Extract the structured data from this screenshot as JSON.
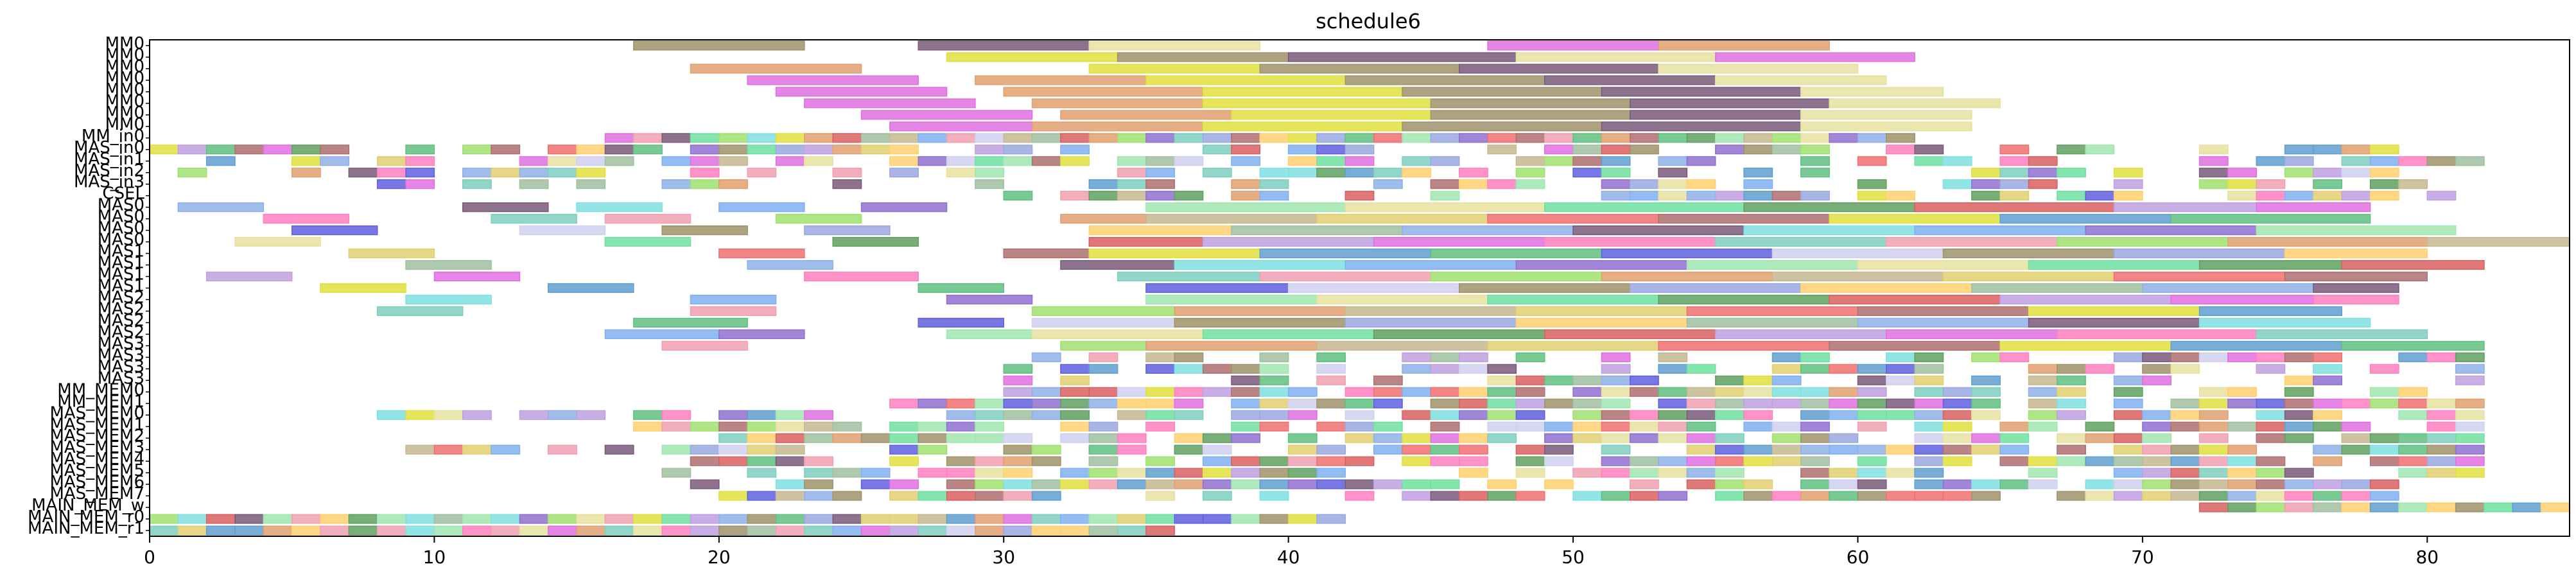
{
  "chart_data": {
    "type": "gantt",
    "title": "schedule6",
    "xlabel": "",
    "ylabel": "",
    "xlim": [
      0,
      85
    ],
    "x_ticks": [
      0,
      10,
      20,
      30,
      40,
      50,
      60,
      70,
      80
    ],
    "x_tick_labels": [
      "0",
      "10",
      "20",
      "30",
      "40",
      "50",
      "60",
      "70",
      "80"
    ],
    "grid": false,
    "legend": "none",
    "rows": [
      "MM0",
      "MM0",
      "MM0",
      "MM0",
      "MM0",
      "MM0",
      "MM0",
      "MM0",
      "MM_in0",
      "MAS_in0",
      "MAS_in1",
      "MAS_in2",
      "MAS_in3",
      "CSEL",
      "MAS0",
      "MAS0",
      "MAS0",
      "MAS0",
      "MAS1",
      "MAS1",
      "MAS1",
      "MAS1",
      "MAS2",
      "MAS2",
      "MAS2",
      "MAS2",
      "MAS3",
      "MAS3",
      "MAS3",
      "MAS3",
      "MM_MEM0",
      "MM_MEM1",
      "MAS_MEM0",
      "MAS_MEM1",
      "MAS_MEM2",
      "MAS_MEM3",
      "MAS_MEM4",
      "MAS_MEM5",
      "MAS_MEM6",
      "MAS_MEM7",
      "MAIN_MEM_w",
      "MAIN_MEM_r0",
      "MAIN_MEM_r1"
    ],
    "palette": [
      "#c6b98f",
      "#8fb0e8",
      "#7ecfbf",
      "#a0936a",
      "#d96060",
      "#5f9fd0",
      "#a0e6b0",
      "#e0d070",
      "#7a5a7a",
      "#f0a0b0",
      "#9aa8e0",
      "#c0a0e0",
      "#60c080",
      "#e8e0a0",
      "#f07070",
      "#80e0e0",
      "#a0e070",
      "#ffd070",
      "#e070e0",
      "#6060e0",
      "#70e0a0",
      "#b07070",
      "#80b0f0",
      "#e0a070",
      "#a0c0a0",
      "#ff80c0",
      "#d0d0f0",
      "#60a060",
      "#e0e040",
      "#9070d0"
    ],
    "bars": [
      [
        0,
        17,
        23
      ],
      [
        0,
        27,
        33
      ],
      [
        0,
        33,
        39
      ],
      [
        0,
        47,
        53
      ],
      [
        0,
        53,
        59
      ],
      [
        1,
        28,
        34
      ],
      [
        1,
        34,
        40
      ],
      [
        1,
        40,
        48
      ],
      [
        1,
        48,
        55
      ],
      [
        1,
        55,
        62
      ],
      [
        2,
        19,
        25
      ],
      [
        2,
        33,
        39
      ],
      [
        2,
        39,
        46
      ],
      [
        2,
        46,
        53
      ],
      [
        2,
        53,
        60
      ],
      [
        3,
        21,
        27
      ],
      [
        3,
        29,
        35
      ],
      [
        3,
        35,
        42
      ],
      [
        3,
        42,
        49
      ],
      [
        3,
        49,
        55
      ],
      [
        3,
        55,
        61
      ],
      [
        4,
        22,
        28
      ],
      [
        4,
        30,
        37
      ],
      [
        4,
        37,
        44
      ],
      [
        4,
        44,
        51
      ],
      [
        4,
        51,
        58
      ],
      [
        4,
        58,
        63
      ],
      [
        5,
        23,
        29
      ],
      [
        5,
        31,
        37
      ],
      [
        5,
        37,
        45
      ],
      [
        5,
        45,
        52
      ],
      [
        5,
        52,
        59
      ],
      [
        5,
        59,
        65
      ],
      [
        6,
        25,
        31
      ],
      [
        6,
        32,
        38
      ],
      [
        6,
        38,
        45
      ],
      [
        6,
        45,
        52
      ],
      [
        6,
        52,
        58
      ],
      [
        6,
        58,
        64
      ],
      [
        7,
        26,
        31
      ],
      [
        7,
        31,
        37
      ],
      [
        7,
        37,
        44
      ],
      [
        7,
        44,
        51
      ],
      [
        7,
        51,
        58
      ],
      [
        7,
        58,
        64
      ]
    ],
    "grid_rows": [
      [
        8,
        16,
        62,
        1.0
      ],
      [
        9,
        0,
        80,
        0.6
      ],
      [
        10,
        2,
        82,
        0.6
      ],
      [
        11,
        1,
        80,
        0.55
      ],
      [
        12,
        5,
        80,
        0.5
      ],
      [
        30,
        30,
        80,
        0.8
      ],
      [
        31,
        26,
        82,
        0.85
      ],
      [
        32,
        8,
        82,
        0.7
      ],
      [
        33,
        16,
        82,
        0.75
      ],
      [
        34,
        20,
        82,
        0.8
      ],
      [
        35,
        8,
        82,
        0.7
      ],
      [
        36,
        19,
        82,
        0.75
      ],
      [
        37,
        18,
        82,
        0.8
      ],
      [
        38,
        19,
        80,
        0.8
      ],
      [
        39,
        19,
        80,
        0.8
      ],
      [
        40,
        72,
        85,
        0.9
      ],
      [
        41,
        0,
        42,
        1.0
      ],
      [
        42,
        0,
        36,
        1.0
      ]
    ],
    "long_bars": [
      [
        14,
        1,
        4
      ],
      [
        14,
        11,
        14
      ],
      [
        14,
        15,
        18
      ],
      [
        14,
        20,
        23
      ],
      [
        14,
        25,
        28
      ],
      [
        14,
        35,
        42
      ],
      [
        14,
        42,
        49
      ],
      [
        14,
        49,
        56
      ],
      [
        14,
        56,
        62
      ],
      [
        14,
        62,
        69
      ],
      [
        14,
        69,
        74
      ],
      [
        14,
        74,
        78
      ],
      [
        15,
        4,
        7
      ],
      [
        15,
        12,
        15
      ],
      [
        15,
        16,
        19
      ],
      [
        15,
        22,
        25
      ],
      [
        15,
        32,
        35
      ],
      [
        15,
        35,
        41
      ],
      [
        15,
        41,
        47
      ],
      [
        15,
        47,
        53
      ],
      [
        15,
        53,
        59
      ],
      [
        15,
        59,
        65
      ],
      [
        15,
        65,
        71
      ],
      [
        15,
        71,
        78
      ],
      [
        16,
        5,
        8
      ],
      [
        16,
        13,
        16
      ],
      [
        16,
        18,
        21
      ],
      [
        16,
        23,
        26
      ],
      [
        16,
        33,
        38
      ],
      [
        16,
        38,
        44
      ],
      [
        16,
        44,
        50
      ],
      [
        16,
        50,
        56
      ],
      [
        16,
        56,
        62
      ],
      [
        16,
        62,
        68
      ],
      [
        16,
        68,
        74
      ],
      [
        16,
        74,
        81
      ],
      [
        17,
        3,
        6
      ],
      [
        17,
        16,
        19
      ],
      [
        17,
        24,
        27
      ],
      [
        17,
        33,
        37
      ],
      [
        17,
        37,
        43
      ],
      [
        17,
        43,
        49
      ],
      [
        17,
        49,
        55
      ],
      [
        17,
        55,
        61
      ],
      [
        17,
        61,
        67
      ],
      [
        17,
        67,
        73
      ],
      [
        17,
        73,
        80
      ],
      [
        17,
        80,
        85
      ],
      [
        18,
        7,
        10
      ],
      [
        18,
        20,
        23
      ],
      [
        18,
        30,
        33
      ],
      [
        18,
        33,
        39
      ],
      [
        18,
        39,
        45
      ],
      [
        18,
        45,
        51
      ],
      [
        18,
        51,
        57
      ],
      [
        18,
        57,
        63
      ],
      [
        18,
        63,
        69
      ],
      [
        18,
        69,
        75
      ],
      [
        18,
        75,
        80
      ],
      [
        19,
        9,
        12
      ],
      [
        19,
        21,
        24
      ],
      [
        19,
        32,
        36
      ],
      [
        19,
        36,
        42
      ],
      [
        19,
        42,
        48
      ],
      [
        19,
        48,
        54
      ],
      [
        19,
        54,
        60
      ],
      [
        19,
        60,
        66
      ],
      [
        19,
        66,
        72
      ],
      [
        19,
        72,
        77
      ],
      [
        19,
        77,
        82
      ],
      [
        20,
        2,
        5
      ],
      [
        20,
        10,
        13
      ],
      [
        20,
        23,
        27
      ],
      [
        20,
        34,
        39
      ],
      [
        20,
        39,
        45
      ],
      [
        20,
        45,
        51
      ],
      [
        20,
        51,
        57
      ],
      [
        20,
        57,
        63
      ],
      [
        20,
        63,
        69
      ],
      [
        20,
        69,
        75
      ],
      [
        20,
        75,
        80
      ],
      [
        21,
        6,
        9
      ],
      [
        21,
        14,
        17
      ],
      [
        21,
        27,
        30
      ],
      [
        21,
        35,
        40
      ],
      [
        21,
        40,
        46
      ],
      [
        21,
        46,
        52
      ],
      [
        21,
        52,
        58
      ],
      [
        21,
        58,
        64
      ],
      [
        21,
        64,
        70
      ],
      [
        21,
        70,
        76
      ],
      [
        21,
        76,
        79
      ],
      [
        22,
        9,
        12
      ],
      [
        22,
        19,
        22
      ],
      [
        22,
        28,
        31
      ],
      [
        22,
        35,
        41
      ],
      [
        22,
        41,
        47
      ],
      [
        22,
        47,
        53
      ],
      [
        22,
        53,
        59
      ],
      [
        22,
        59,
        65
      ],
      [
        22,
        65,
        71
      ],
      [
        22,
        71,
        76
      ],
      [
        22,
        76,
        79
      ],
      [
        23,
        8,
        11
      ],
      [
        23,
        19,
        22
      ],
      [
        23,
        31,
        36
      ],
      [
        23,
        36,
        42
      ],
      [
        23,
        42,
        48
      ],
      [
        23,
        48,
        54
      ],
      [
        23,
        54,
        60
      ],
      [
        23,
        60,
        66
      ],
      [
        23,
        66,
        72
      ],
      [
        23,
        72,
        77
      ],
      [
        24,
        17,
        21
      ],
      [
        24,
        27,
        30
      ],
      [
        24,
        31,
        36
      ],
      [
        24,
        36,
        42
      ],
      [
        24,
        42,
        48
      ],
      [
        24,
        48,
        54
      ],
      [
        24,
        54,
        60
      ],
      [
        24,
        60,
        66
      ],
      [
        24,
        66,
        72
      ],
      [
        24,
        72,
        78
      ],
      [
        25,
        16,
        20
      ],
      [
        25,
        20,
        23
      ],
      [
        25,
        28,
        31
      ],
      [
        25,
        31,
        37
      ],
      [
        25,
        37,
        43
      ],
      [
        25,
        43,
        49
      ],
      [
        25,
        49,
        55
      ],
      [
        25,
        55,
        61
      ],
      [
        25,
        61,
        67
      ],
      [
        25,
        67,
        74
      ],
      [
        25,
        74,
        80
      ],
      [
        26,
        18,
        21
      ],
      [
        26,
        32,
        35
      ],
      [
        26,
        35,
        41
      ],
      [
        26,
        41,
        47
      ],
      [
        26,
        47,
        53
      ],
      [
        26,
        53,
        59
      ],
      [
        26,
        59,
        65
      ],
      [
        26,
        65,
        71
      ],
      [
        26,
        71,
        77
      ],
      [
        26,
        77,
        82
      ]
    ],
    "grid_cols": 85,
    "grid_cell": 1.0
  }
}
